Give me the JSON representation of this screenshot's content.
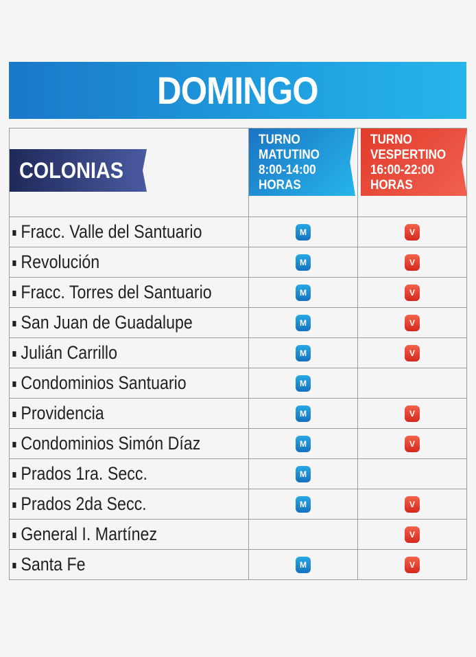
{
  "title": "DOMINGO",
  "header": {
    "colonias": "COLONIAS",
    "matutino": [
      "TURNO",
      "MATUTINO",
      "8:00-14:00",
      "HORAS"
    ],
    "vespertino": [
      "TURNO",
      "VESPERTINO",
      "16:00-22:00",
      "HORAS"
    ]
  },
  "badges": {
    "m": "M",
    "v": "V"
  },
  "colors": {
    "matutino": "#1f8fd8",
    "vespertino": "#e23b2a",
    "banner": "#1f9ee0"
  },
  "rows": [
    {
      "name": "Fracc. Valle del Santuario",
      "m": true,
      "v": true
    },
    {
      "name": "Revolución",
      "m": true,
      "v": true
    },
    {
      "name": "Fracc. Torres del Santuario",
      "m": true,
      "v": true
    },
    {
      "name": "San Juan de Guadalupe",
      "m": true,
      "v": true
    },
    {
      "name": "Julián Carrillo",
      "m": true,
      "v": true
    },
    {
      "name": "Condominios Santuario",
      "m": true,
      "v": false
    },
    {
      "name": "Providencia",
      "m": true,
      "v": true
    },
    {
      "name": "Condominios Simón Díaz",
      "m": true,
      "v": true
    },
    {
      "name": "Prados 1ra. Secc.",
      "m": true,
      "v": false
    },
    {
      "name": "Prados 2da Secc.",
      "m": true,
      "v": true
    },
    {
      "name": "General I. Martínez",
      "m": false,
      "v": true
    },
    {
      "name": "Santa Fe",
      "m": true,
      "v": true
    }
  ]
}
